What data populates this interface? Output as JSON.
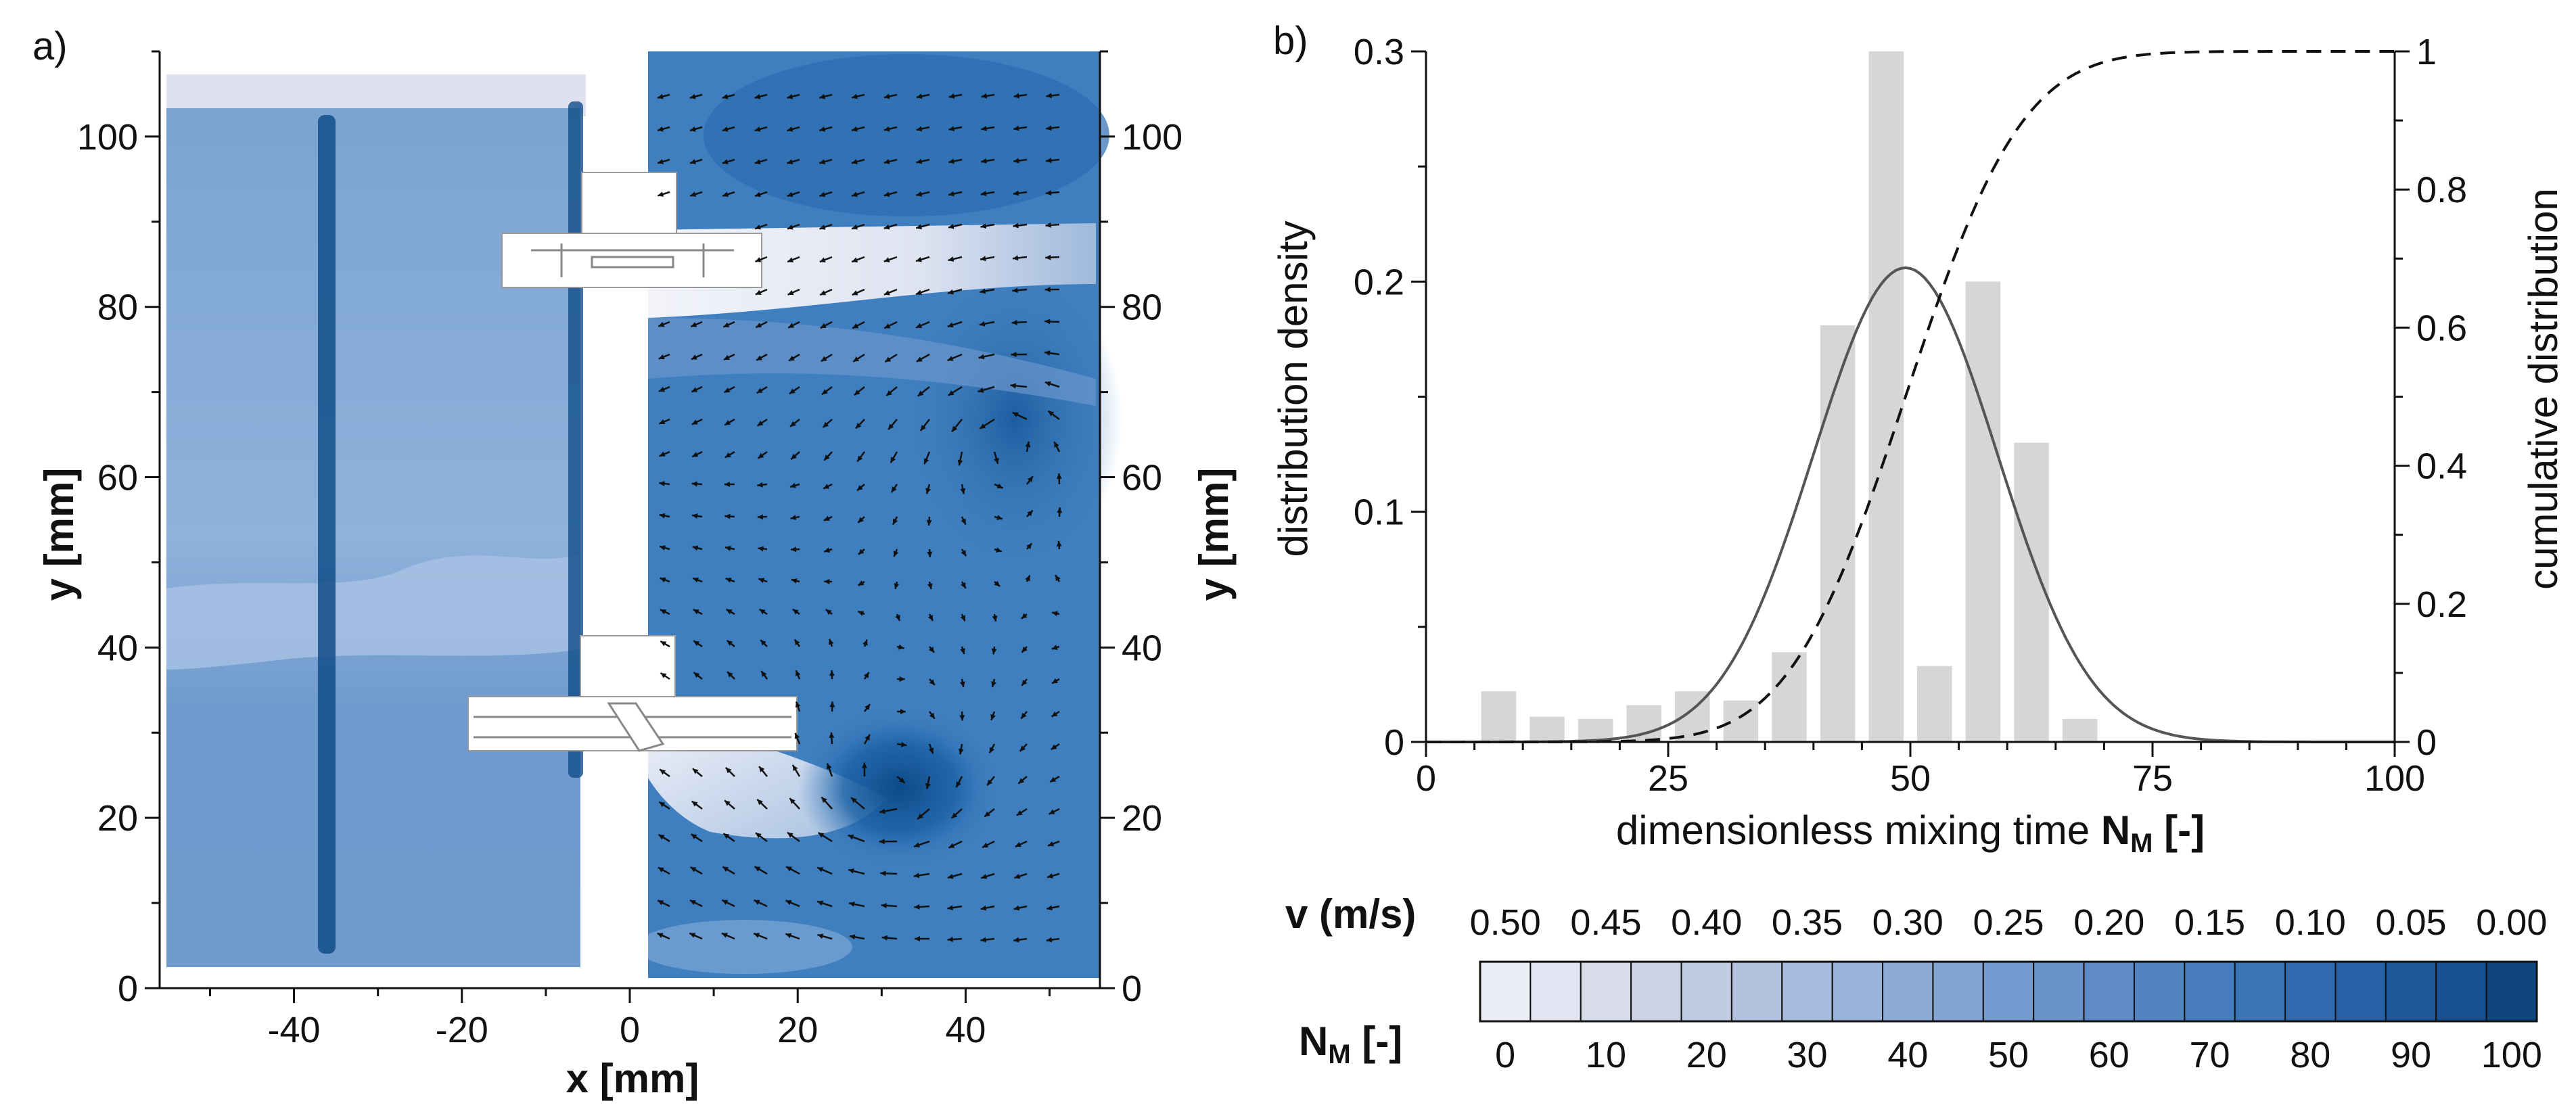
{
  "panels": {
    "a": "a)",
    "b": "b)"
  },
  "chart_data": [
    {
      "id": "velocity-field",
      "type": "heatmap",
      "title": "",
      "xlabel": "x [mm]",
      "ylabel_left": "y [mm]",
      "ylabel_right": "y [mm]",
      "xlim": [
        -56,
        56
      ],
      "ylim": [
        0,
        110
      ],
      "x_ticks": [
        -40,
        -20,
        0,
        20,
        40
      ],
      "y_ticks": [
        0,
        20,
        40,
        60,
        80,
        100
      ],
      "left_half": "mixing time N_M field",
      "right_half": "velocity magnitude v with velocity vectors",
      "vortex_centers": [
        {
          "x": 31,
          "y": 23
        },
        {
          "x": 45,
          "y": 65
        }
      ],
      "high_velocity_jets": [
        {
          "from": [
            2,
            85
          ],
          "to": [
            55,
            86
          ]
        },
        {
          "from": [
            2,
            30
          ],
          "to": [
            30,
            10
          ]
        }
      ],
      "colors": {
        "low": "#eef0f8",
        "high": "#0a4a87"
      }
    },
    {
      "id": "mixing-distribution",
      "type": "bar",
      "title": "",
      "xlabel": "dimensionless mixing time",
      "xlabel_symbol": "N",
      "xlabel_subscript": "M",
      "xlabel_unit": "[-]",
      "ylabel": "distribution density",
      "y2label": "cumulative distribution",
      "xlim": [
        0,
        100
      ],
      "ylim": [
        0,
        0.3
      ],
      "y2lim": [
        0,
        1
      ],
      "x_ticks": [
        0,
        25,
        50,
        75,
        100
      ],
      "y_ticks": [
        0,
        0.1,
        0.2,
        0.3
      ],
      "y_tick_labels": [
        "0",
        "0.1",
        "0.2",
        "0.3"
      ],
      "y2_ticks": [
        0,
        0.2,
        0.4,
        0.6,
        0.8,
        1
      ],
      "y2_tick_labels": [
        "0",
        "0.2",
        "0.4",
        "0.6",
        "0.8",
        "1"
      ],
      "bars": {
        "centers": [
          7.5,
          12.5,
          17.5,
          22.5,
          27.5,
          32.5,
          37.5,
          42.5,
          47.5,
          52.5,
          57.5,
          62.5,
          67.5
        ],
        "width": 3.6,
        "values": [
          0.022,
          0.011,
          0.01,
          0.016,
          0.022,
          0.018,
          0.039,
          0.181,
          0.3,
          0.033,
          0.2,
          0.13,
          0.01
        ],
        "color": "#d6d6d6"
      },
      "density_fit": {
        "type": "normal",
        "mean": 49.5,
        "sd": 9.5,
        "peak": 0.206,
        "color": "#555555"
      },
      "cumulative": {
        "type": "normal-cdf",
        "mean": 49.5,
        "sd": 9.5,
        "style": "dashed",
        "color": "#111111"
      }
    },
    {
      "id": "colorbar",
      "type": "table",
      "v_label": "v (m/s)",
      "nm_label_symbol": "N",
      "nm_label_subscript": "M",
      "nm_label_unit": "[-]",
      "v_ticks": [
        "0.50",
        "0.45",
        "0.40",
        "0.35",
        "0.30",
        "0.25",
        "0.20",
        "0.15",
        "0.10",
        "0.05",
        "0.00"
      ],
      "nm_ticks": [
        "0",
        "10",
        "20",
        "30",
        "40",
        "50",
        "60",
        "70",
        "80",
        "90",
        "100"
      ],
      "steps": 21,
      "colors": [
        "#eceef6",
        "#e2e4f1",
        "#d8dceb",
        "#ccd3e6",
        "#c0cbe2",
        "#b3c3df",
        "#a7bbdc",
        "#9ab3d9",
        "#8eabd6",
        "#82a3d3",
        "#769bd0",
        "#6a93cc",
        "#5e8bc8",
        "#5283c3",
        "#467bbe",
        "#3b73b7",
        "#316aaf",
        "#2861a5",
        "#20589a",
        "#184f8f",
        "#104580"
      ]
    }
  ]
}
